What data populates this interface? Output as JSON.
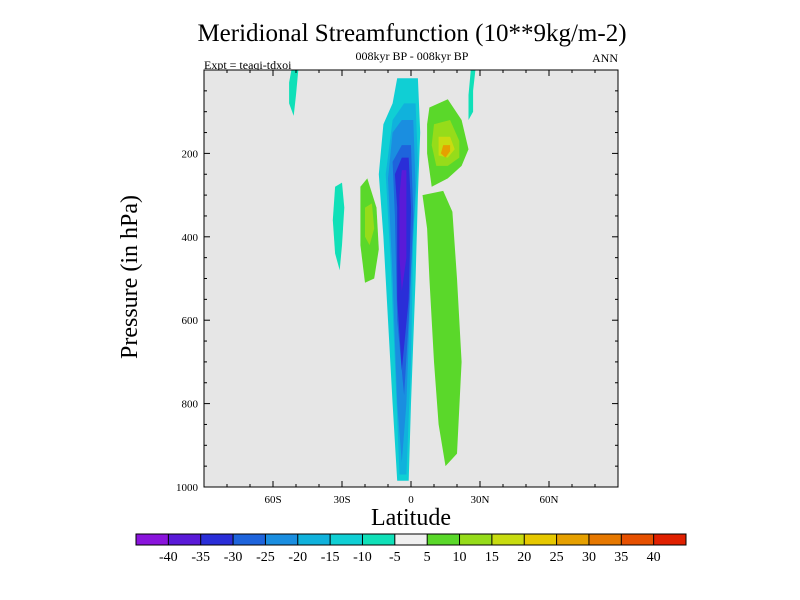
{
  "chart_data": {
    "type": "contour",
    "title": "Meridional Streamfunction (10**9kg/m-2)",
    "subtitle": "008kyr BP - 008kyr BP",
    "experiment_label": "Expt = teaqi-tdxoi",
    "season_label": "ANN",
    "xlabel": "Latitude",
    "ylabel": "Pressure (in hPa)",
    "xlim": [
      -90,
      90
    ],
    "ylim": [
      0,
      1000
    ],
    "y_inverted": true,
    "x_ticks": [
      {
        "value": -60,
        "label": "60S"
      },
      {
        "value": -30,
        "label": "30S"
      },
      {
        "value": 0,
        "label": "0"
      },
      {
        "value": 30,
        "label": "30N"
      },
      {
        "value": 60,
        "label": "60N"
      }
    ],
    "y_ticks": [
      {
        "value": 200,
        "label": "200"
      },
      {
        "value": 400,
        "label": "400"
      },
      {
        "value": 600,
        "label": "600"
      },
      {
        "value": 800,
        "label": "800"
      },
      {
        "value": 1000,
        "label": "1000"
      }
    ],
    "colorbar": {
      "levels": [
        -40,
        -35,
        -30,
        -25,
        -20,
        -15,
        -10,
        -5,
        5,
        10,
        15,
        20,
        25,
        30,
        35,
        40
      ],
      "labels": [
        "-40",
        "-35",
        "-30",
        "-25",
        "-20",
        "-15",
        "-10",
        "-5",
        "5",
        "10",
        "15",
        "20",
        "25",
        "30",
        "35",
        "40"
      ],
      "colors": [
        "#8a14dc",
        "#5a1ad8",
        "#2a2ed8",
        "#1e64dc",
        "#1a8ee0",
        "#10b2dc",
        "#10cfd4",
        "#10e0b8",
        "#f0f0f0",
        "#5ad82a",
        "#96dc1a",
        "#c8dc10",
        "#e6c800",
        "#e6a000",
        "#e67800",
        "#e65000",
        "#e02000"
      ]
    },
    "field_regions": [
      {
        "name": "central-negative-cell",
        "level": -10,
        "points": [
          [
            -5,
            20
          ],
          [
            3,
            20
          ],
          [
            4,
            150
          ],
          [
            3,
            300
          ],
          [
            2,
            500
          ],
          [
            0,
            800
          ],
          [
            -1,
            985
          ],
          [
            -6,
            985
          ],
          [
            -8,
            800
          ],
          [
            -10,
            600
          ],
          [
            -12,
            400
          ],
          [
            -14,
            250
          ],
          [
            -12,
            130
          ],
          [
            -8,
            80
          ],
          [
            -6,
            20
          ]
        ]
      },
      {
        "name": "central-negative-cell",
        "level": -15,
        "points": [
          [
            -3,
            80
          ],
          [
            2,
            80
          ],
          [
            3,
            220
          ],
          [
            1,
            400
          ],
          [
            0,
            700
          ],
          [
            -2,
            970
          ],
          [
            -5,
            970
          ],
          [
            -7,
            700
          ],
          [
            -9,
            450
          ],
          [
            -11,
            250
          ],
          [
            -8,
            120
          ]
        ]
      },
      {
        "name": "central-negative-cell",
        "level": -20,
        "points": [
          [
            -4,
            120
          ],
          [
            1,
            120
          ],
          [
            2,
            280
          ],
          [
            0,
            500
          ],
          [
            -2,
            800
          ],
          [
            -4,
            940
          ],
          [
            -6,
            800
          ],
          [
            -8,
            500
          ],
          [
            -10,
            260
          ],
          [
            -8,
            150
          ]
        ]
      },
      {
        "name": "central-negative-cell",
        "level": -25,
        "points": [
          [
            -4,
            180
          ],
          [
            0,
            180
          ],
          [
            1,
            350
          ],
          [
            -1,
            600
          ],
          [
            -3,
            780
          ],
          [
            -6,
            600
          ],
          [
            -7,
            350
          ],
          [
            -8,
            220
          ]
        ]
      },
      {
        "name": "central-negative-cell",
        "level": -30,
        "points": [
          [
            -4,
            210
          ],
          [
            -1,
            210
          ],
          [
            0,
            330
          ],
          [
            -1,
            550
          ],
          [
            -4,
            720
          ],
          [
            -6,
            550
          ],
          [
            -6,
            330
          ],
          [
            -7,
            250
          ]
        ]
      },
      {
        "name": "central-negative-cell",
        "level": -35,
        "points": [
          [
            -4,
            240
          ],
          [
            -2,
            240
          ],
          [
            -2,
            300
          ],
          [
            -2,
            450
          ],
          [
            -4,
            530
          ],
          [
            -5,
            450
          ],
          [
            -5,
            300
          ]
        ]
      },
      {
        "name": "nh-positive-band",
        "level": 5,
        "points": [
          [
            5,
            300
          ],
          [
            14,
            290
          ],
          [
            18,
            340
          ],
          [
            20,
            500
          ],
          [
            22,
            700
          ],
          [
            20,
            920
          ],
          [
            15,
            950
          ],
          [
            12,
            850
          ],
          [
            10,
            700
          ],
          [
            8,
            500
          ],
          [
            7,
            380
          ]
        ]
      },
      {
        "name": "nh-upper-positive-cell",
        "level": 5,
        "points": [
          [
            8,
            90
          ],
          [
            16,
            70
          ],
          [
            22,
            120
          ],
          [
            25,
            190
          ],
          [
            22,
            230
          ],
          [
            16,
            260
          ],
          [
            9,
            280
          ],
          [
            7,
            200
          ],
          [
            7,
            130
          ]
        ]
      },
      {
        "name": "nh-upper-positive-cell",
        "level": 10,
        "points": [
          [
            10,
            130
          ],
          [
            17,
            120
          ],
          [
            21,
            170
          ],
          [
            21,
            210
          ],
          [
            16,
            230
          ],
          [
            11,
            230
          ],
          [
            9,
            180
          ]
        ]
      },
      {
        "name": "nh-upper-positive-cell",
        "level": 15,
        "points": [
          [
            12,
            160
          ],
          [
            17,
            160
          ],
          [
            19,
            190
          ],
          [
            16,
            210
          ],
          [
            12,
            205
          ]
        ]
      },
      {
        "name": "nh-upper-positive-cell",
        "level": 25,
        "points": [
          [
            14,
            180
          ],
          [
            17,
            180
          ],
          [
            17,
            195
          ],
          [
            15,
            210
          ],
          [
            13,
            200
          ]
        ]
      },
      {
        "name": "sh-positive-cell",
        "level": 5,
        "points": [
          [
            -22,
            280
          ],
          [
            -19,
            260
          ],
          [
            -15,
            330
          ],
          [
            -14,
            430
          ],
          [
            -16,
            500
          ],
          [
            -20,
            510
          ],
          [
            -22,
            420
          ]
        ]
      },
      {
        "name": "sh-positive-cell",
        "level": 10,
        "points": [
          [
            -20,
            330
          ],
          [
            -17,
            320
          ],
          [
            -16,
            380
          ],
          [
            -18,
            420
          ],
          [
            -20,
            400
          ]
        ]
      },
      {
        "name": "sh-negative-strip",
        "level": -5,
        "points": [
          [
            -33,
            280
          ],
          [
            -30,
            270
          ],
          [
            -29,
            330
          ],
          [
            -30,
            420
          ],
          [
            -31,
            480
          ],
          [
            -33,
            440
          ],
          [
            -34,
            360
          ]
        ]
      },
      {
        "name": "upper-left-negative-strip",
        "level": -5,
        "points": [
          [
            -52,
            0
          ],
          [
            -49,
            0
          ],
          [
            -50,
            60
          ],
          [
            -51,
            110
          ],
          [
            -53,
            80
          ],
          [
            -53,
            30
          ]
        ]
      },
      {
        "name": "upper-right-negative-strip",
        "level": -5,
        "points": [
          [
            26,
            0
          ],
          [
            28,
            0
          ],
          [
            27,
            50
          ],
          [
            27,
            100
          ],
          [
            25,
            120
          ],
          [
            25,
            60
          ]
        ]
      }
    ]
  }
}
